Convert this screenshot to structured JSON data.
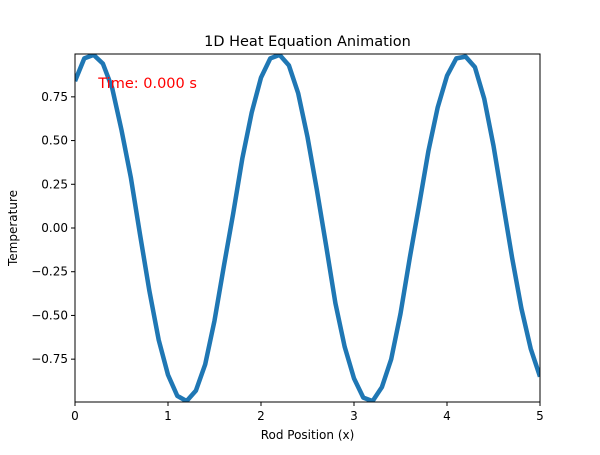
{
  "chart_data": {
    "type": "line",
    "title": "1D Heat Equation Animation",
    "xlabel": "Rod Position (x)",
    "ylabel": "Temperature",
    "xlim": [
      0,
      5
    ],
    "ylim": [
      -0.995,
      0.995
    ],
    "xticks": [
      0,
      1,
      2,
      3,
      4,
      5
    ],
    "xtick_labels": [
      "0",
      "1",
      "2",
      "3",
      "4",
      "5"
    ],
    "yticks": [
      0.75,
      0.5,
      0.25,
      0.0,
      -0.25,
      -0.5,
      -0.75
    ],
    "ytick_labels": [
      "0.75",
      "0.50",
      "0.25",
      "0.00",
      "−0.25",
      "−0.50",
      "−0.75"
    ],
    "grid": false,
    "legend": "none",
    "annotation": {
      "text": "Time: 0.000 s",
      "x": 0.25,
      "y": 0.83,
      "color": "#ff0000"
    },
    "series": [
      {
        "color": "#1f77b4",
        "x": [
          0.0,
          0.1,
          0.2,
          0.3,
          0.4,
          0.5,
          0.6,
          0.7,
          0.8,
          0.9,
          1.0,
          1.1,
          1.2,
          1.3,
          1.4,
          1.5,
          1.6,
          1.7,
          1.8,
          1.9,
          2.0,
          2.1,
          2.2,
          2.3,
          2.4,
          2.5,
          2.6,
          2.7,
          2.8,
          2.9,
          3.0,
          3.1,
          3.2,
          3.3,
          3.4,
          3.5,
          3.6,
          3.7,
          3.8,
          3.9,
          4.0,
          4.1,
          4.2,
          4.3,
          4.4,
          4.5,
          4.6,
          4.7,
          4.8,
          4.9,
          5.0
        ],
        "y": [
          0.84,
          0.97,
          0.99,
          0.94,
          0.8,
          0.56,
          0.29,
          -0.04,
          -0.36,
          -0.64,
          -0.84,
          -0.96,
          -0.99,
          -0.93,
          -0.78,
          -0.53,
          -0.22,
          0.08,
          0.4,
          0.66,
          0.86,
          0.97,
          0.99,
          0.93,
          0.77,
          0.52,
          0.22,
          -0.1,
          -0.43,
          -0.68,
          -0.86,
          -0.97,
          -0.99,
          -0.91,
          -0.75,
          -0.49,
          -0.17,
          0.13,
          0.44,
          0.69,
          0.87,
          0.97,
          0.98,
          0.92,
          0.74,
          0.47,
          0.15,
          -0.17,
          -0.46,
          -0.69,
          -0.85
        ]
      }
    ]
  }
}
